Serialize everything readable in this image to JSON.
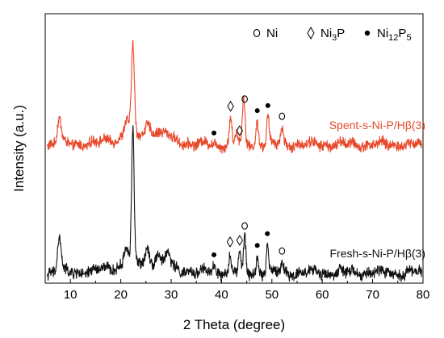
{
  "chart_data": {
    "type": "line",
    "xlabel": "2 Theta (degree)",
    "ylabel": "Intensity (a.u.)",
    "xlim": [
      5,
      80
    ],
    "x_ticks": [
      10,
      20,
      30,
      40,
      50,
      60,
      70,
      80
    ],
    "y_ticks": "none",
    "grid": false,
    "legend": {
      "placement": "top-right",
      "entries": [
        {
          "symbol": "o",
          "text": "Ni"
        },
        {
          "symbol": "◊",
          "text": "Ni3P",
          "base": "Ni",
          "sub": "3",
          "rest": "P"
        },
        {
          "symbol": "●",
          "text": "Ni12P5",
          "base": "Ni",
          "sub": "12",
          "rest": "P",
          "sub2": "5"
        }
      ]
    },
    "series": [
      {
        "name": "Spent-s-Ni-P/Hβ(3)",
        "color": "#e8482a",
        "baseline": 0.6,
        "peaks": [
          {
            "x": 7.8,
            "height": 0.52,
            "width": 0.55
          },
          {
            "x": 22.4,
            "height": 1.75,
            "width": 0.42
          },
          {
            "x": 21.2,
            "height": 0.35,
            "width": 0.7
          },
          {
            "x": 25.4,
            "height": 0.22,
            "width": 0.8
          },
          {
            "x": 27.0,
            "height": 0.12,
            "width": 0.9
          },
          {
            "x": 29.0,
            "height": 0.12,
            "width": 1.0
          },
          {
            "x": 41.8,
            "height": 0.52,
            "width": 0.35
          },
          {
            "x": 44.4,
            "height": 0.92,
            "width": 0.35
          },
          {
            "x": 43.0,
            "height": 0.25,
            "width": 0.4
          },
          {
            "x": 47.1,
            "height": 0.45,
            "width": 0.35
          },
          {
            "x": 49.2,
            "height": 0.55,
            "width": 0.35
          },
          {
            "x": 52.0,
            "height": 0.32,
            "width": 0.4
          }
        ],
        "markers": [
          {
            "x": 38.5,
            "symbol": "●"
          },
          {
            "x": 41.8,
            "symbol": "◊"
          },
          {
            "x": 43.6,
            "symbol": "◊"
          },
          {
            "x": 44.6,
            "symbol": "o"
          },
          {
            "x": 47.1,
            "symbol": "●"
          },
          {
            "x": 49.2,
            "symbol": "●"
          },
          {
            "x": 52.0,
            "symbol": "o"
          }
        ]
      },
      {
        "name": "Fresh-s-Ni-P/Hβ(3)",
        "color": "#111111",
        "baseline": 0.0,
        "peaks": [
          {
            "x": 7.8,
            "height": 0.65,
            "width": 0.5
          },
          {
            "x": 22.4,
            "height": 2.5,
            "width": 0.35
          },
          {
            "x": 21.1,
            "height": 0.35,
            "width": 0.6
          },
          {
            "x": 25.3,
            "height": 0.3,
            "width": 0.6
          },
          {
            "x": 27.3,
            "height": 0.22,
            "width": 0.7
          },
          {
            "x": 29.3,
            "height": 0.28,
            "width": 0.7
          },
          {
            "x": 38.5,
            "height": 0.12,
            "width": 0.3
          },
          {
            "x": 41.7,
            "height": 0.35,
            "width": 0.3
          },
          {
            "x": 43.6,
            "height": 0.38,
            "width": 0.3
          },
          {
            "x": 44.6,
            "height": 0.65,
            "width": 0.3
          },
          {
            "x": 47.1,
            "height": 0.3,
            "width": 0.3
          },
          {
            "x": 49.1,
            "height": 0.52,
            "width": 0.3
          },
          {
            "x": 52.0,
            "height": 0.18,
            "width": 0.35
          }
        ],
        "markers": [
          {
            "x": 38.5,
            "symbol": "●"
          },
          {
            "x": 41.7,
            "symbol": "◊"
          },
          {
            "x": 43.6,
            "symbol": "◊"
          },
          {
            "x": 44.6,
            "symbol": "o"
          },
          {
            "x": 47.1,
            "symbol": "●"
          },
          {
            "x": 49.1,
            "symbol": "●"
          },
          {
            "x": 52.0,
            "symbol": "o"
          }
        ]
      }
    ]
  }
}
